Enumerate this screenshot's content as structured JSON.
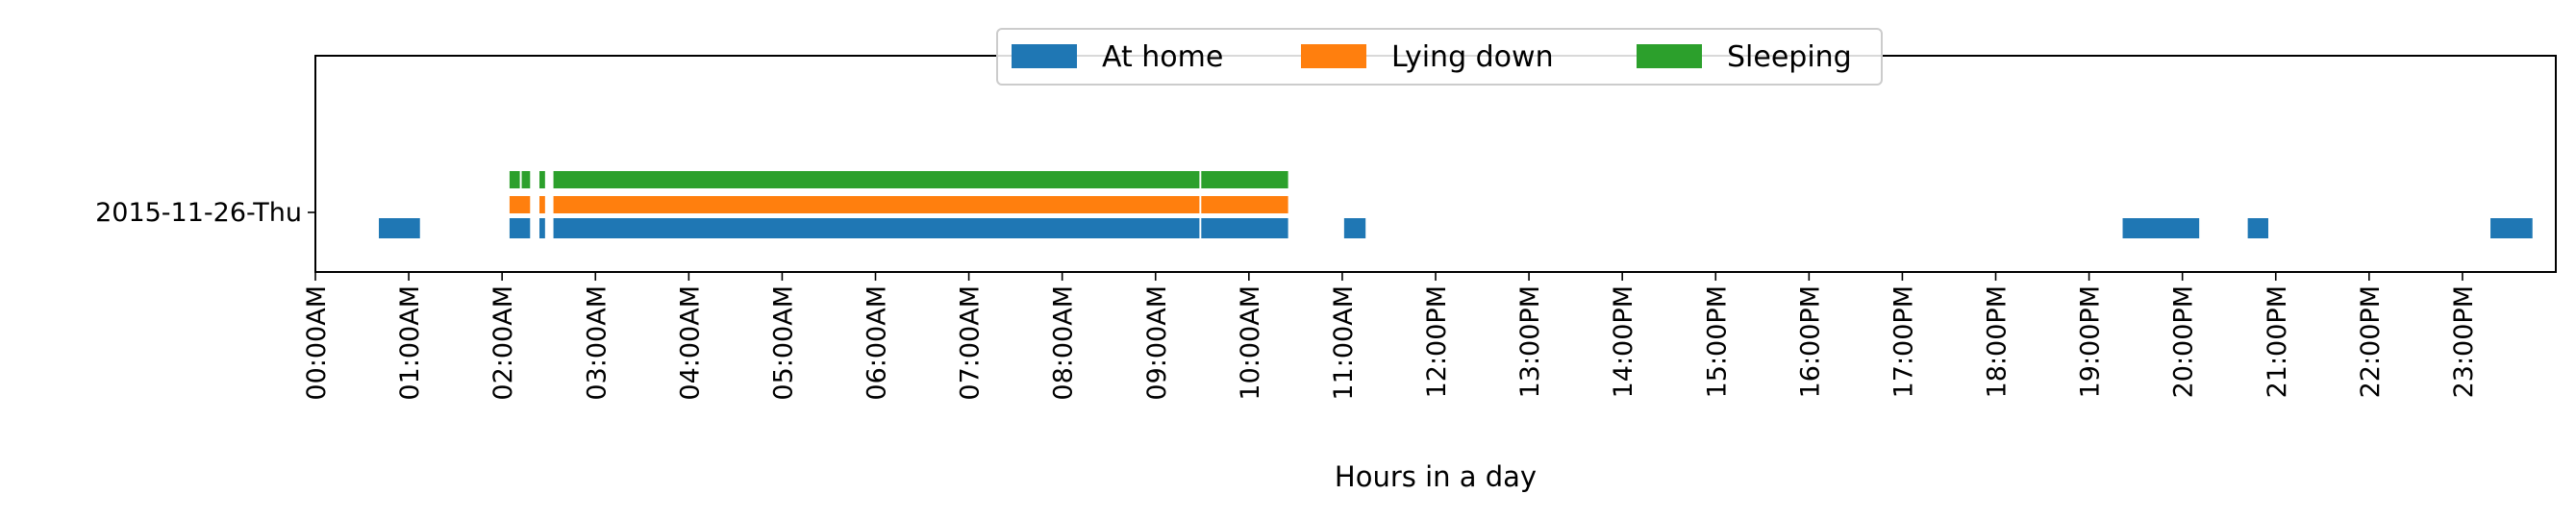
{
  "chart_data": {
    "type": "timeline",
    "xlabel": "Hours in a day",
    "ylabel": "",
    "xlim": [
      0,
      24
    ],
    "grid": false,
    "legend_position": "upper-center",
    "x_ticks": [
      "00:00AM",
      "01:00AM",
      "02:00AM",
      "03:00AM",
      "04:00AM",
      "05:00AM",
      "06:00AM",
      "07:00AM",
      "08:00AM",
      "09:00AM",
      "10:00AM",
      "11:00AM",
      "12:00PM",
      "13:00PM",
      "14:00PM",
      "15:00PM",
      "16:00PM",
      "17:00PM",
      "18:00PM",
      "19:00PM",
      "20:00PM",
      "21:00PM",
      "22:00PM",
      "23:00PM"
    ],
    "categories": [
      "2015-11-26-Thu"
    ],
    "series": [
      {
        "name": "At home",
        "color": "#1f77b4",
        "intervals": [
          [
            0.68,
            1.12
          ],
          [
            2.08,
            2.3
          ],
          [
            2.4,
            2.46
          ],
          [
            2.55,
            9.47
          ],
          [
            9.49,
            10.42
          ],
          [
            11.02,
            11.25
          ],
          [
            19.36,
            20.18
          ],
          [
            20.7,
            20.92
          ],
          [
            23.3,
            23.75
          ]
        ]
      },
      {
        "name": "Lying down",
        "color": "#ff7f0e",
        "intervals": [
          [
            2.08,
            2.3
          ],
          [
            2.4,
            2.46
          ],
          [
            2.55,
            9.47
          ],
          [
            9.49,
            10.42
          ]
        ]
      },
      {
        "name": "Sleeping",
        "color": "#2ca02c",
        "intervals": [
          [
            2.08,
            2.19
          ],
          [
            2.21,
            2.3
          ],
          [
            2.4,
            2.46
          ],
          [
            2.55,
            9.47
          ],
          [
            9.49,
            10.42
          ]
        ]
      }
    ]
  }
}
